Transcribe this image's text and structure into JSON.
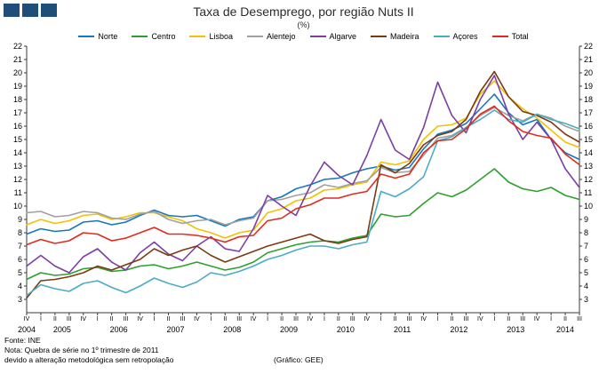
{
  "logo": {
    "color": "#1F4E79",
    "squares": 3
  },
  "header": {
    "title": "Taxa de Desemprego, por região Nuts II",
    "subtitle": "(%)"
  },
  "footer": {
    "source": "Fonte: INE",
    "note_line1": "Nota: Quebra de série no 1º trimestre de 2011",
    "note_line2": "devido a alteração metodológica sem retropolação",
    "credit": "(Gráfico: GEE)"
  },
  "chart_data": {
    "type": "line",
    "title": "Taxa de Desemprego, por região Nuts II",
    "subtitle": "(%)",
    "grid": false,
    "legend_position": "top",
    "ylim": [
      2,
      22
    ],
    "y_ticks": [
      22,
      21,
      20,
      19,
      18,
      17,
      16,
      15,
      14,
      13,
      12,
      11,
      10,
      9,
      8,
      7,
      6,
      5,
      4,
      3
    ],
    "x_quarter_labels": [
      "IV",
      "I",
      "II",
      "III",
      "IV",
      "I",
      "II",
      "III",
      "IV",
      "I",
      "II",
      "III",
      "IV",
      "I",
      "II",
      "III",
      "IV",
      "I",
      "II",
      "III",
      "IV",
      "I",
      "II",
      "III",
      "IV",
      "I",
      "II",
      "III",
      "IV",
      "I",
      "II",
      "III",
      "IV",
      "I",
      "II",
      "III",
      "IV",
      "I",
      "II",
      "III"
    ],
    "years": [
      {
        "label": "2004",
        "quarters": 1
      },
      {
        "label": "2005",
        "quarters": 4
      },
      {
        "label": "2006",
        "quarters": 4
      },
      {
        "label": "2007",
        "quarters": 4
      },
      {
        "label": "2008",
        "quarters": 4
      },
      {
        "label": "2009",
        "quarters": 4
      },
      {
        "label": "2010",
        "quarters": 4
      },
      {
        "label": "2011",
        "quarters": 4
      },
      {
        "label": "2012",
        "quarters": 4
      },
      {
        "label": "2013",
        "quarters": 4
      },
      {
        "label": "2014",
        "quarters": 3
      }
    ],
    "series": [
      {
        "name": "Norte",
        "color": "#1777BC",
        "values": [
          7.9,
          8.3,
          8.1,
          8.2,
          8.8,
          8.9,
          8.6,
          8.8,
          9.3,
          9.7,
          9.3,
          9.2,
          9.3,
          8.9,
          8.5,
          9.0,
          9.2,
          10.4,
          10.7,
          11.3,
          11.6,
          12.0,
          12.1,
          12.5,
          12.8,
          13.0,
          12.7,
          12.9,
          14.3,
          15.4,
          15.7,
          16.2,
          17.3,
          18.4,
          17.0,
          16.1,
          16.5,
          15.0,
          14.0,
          13.5
        ]
      },
      {
        "name": "Centro",
        "color": "#2CA02C",
        "values": [
          4.5,
          5.0,
          4.8,
          4.9,
          5.3,
          5.4,
          5.1,
          5.2,
          5.5,
          5.6,
          5.3,
          5.5,
          5.8,
          5.5,
          5.2,
          5.4,
          5.8,
          6.5,
          6.8,
          7.1,
          7.3,
          7.4,
          7.3,
          7.6,
          7.8,
          9.4,
          9.2,
          9.3,
          10.2,
          11.0,
          10.7,
          11.2,
          12.0,
          12.8,
          11.8,
          11.3,
          11.1,
          11.4,
          10.8,
          10.5
        ]
      },
      {
        "name": "Lisboa",
        "color": "#F2C200",
        "values": [
          8.6,
          9.0,
          8.7,
          8.9,
          9.3,
          9.4,
          9.0,
          9.2,
          9.5,
          9.5,
          9.2,
          8.9,
          8.3,
          8.0,
          7.6,
          8.0,
          8.2,
          9.5,
          9.8,
          10.4,
          10.6,
          11.2,
          11.3,
          11.6,
          11.8,
          13.3,
          13.1,
          13.4,
          15.0,
          16.0,
          16.1,
          16.6,
          18.4,
          19.4,
          18.2,
          17.3,
          16.6,
          15.7,
          14.8,
          14.4
        ]
      },
      {
        "name": "Alentejo",
        "color": "#A0A0A0",
        "values": [
          9.5,
          9.6,
          9.2,
          9.3,
          9.6,
          9.5,
          9.1,
          9.0,
          9.4,
          9.6,
          9.0,
          8.7,
          8.9,
          9.0,
          8.6,
          8.9,
          9.1,
          10.4,
          10.5,
          10.8,
          11.0,
          11.6,
          11.4,
          11.7,
          11.9,
          12.9,
          12.5,
          12.6,
          13.8,
          15.1,
          15.3,
          15.9,
          16.8,
          17.4,
          16.8,
          16.4,
          16.9,
          16.6,
          16.0,
          15.6
        ]
      },
      {
        "name": "Algarve",
        "color": "#7B3FA3",
        "values": [
          5.5,
          6.3,
          5.5,
          5.0,
          6.2,
          6.8,
          5.8,
          5.2,
          6.5,
          7.3,
          6.4,
          5.9,
          7.0,
          7.7,
          6.8,
          6.6,
          8.3,
          10.8,
          10.0,
          9.3,
          11.5,
          13.3,
          12.3,
          11.6,
          13.8,
          16.5,
          14.2,
          13.5,
          15.9,
          19.3,
          16.8,
          15.5,
          18.0,
          19.8,
          16.9,
          15.0,
          16.3,
          15.0,
          12.8,
          11.4
        ]
      },
      {
        "name": "Madeira",
        "color": "#7A3B12",
        "values": [
          3.1,
          4.4,
          4.5,
          4.7,
          5.0,
          5.5,
          5.2,
          5.6,
          6.0,
          6.8,
          6.3,
          6.7,
          7.0,
          6.3,
          5.8,
          6.2,
          6.6,
          7.0,
          7.3,
          7.6,
          7.9,
          7.4,
          7.2,
          7.5,
          7.7,
          13.1,
          12.5,
          13.2,
          14.6,
          15.3,
          15.6,
          16.5,
          18.6,
          20.1,
          18.2,
          17.1,
          16.8,
          16.3,
          15.4,
          14.8
        ]
      },
      {
        "name": "Açores",
        "color": "#4BACC6",
        "values": [
          3.3,
          4.1,
          3.8,
          3.6,
          4.2,
          4.4,
          3.9,
          3.5,
          4.0,
          4.6,
          4.2,
          3.9,
          4.3,
          5.0,
          4.8,
          5.1,
          5.5,
          6.0,
          6.3,
          6.7,
          7.0,
          7.0,
          6.8,
          7.1,
          7.3,
          11.1,
          10.7,
          11.3,
          12.2,
          14.9,
          15.2,
          15.9,
          16.5,
          17.2,
          16.5,
          16.3,
          16.9,
          16.5,
          16.2,
          15.8
        ]
      },
      {
        "name": "Total",
        "color": "#E02B20",
        "values": [
          7.1,
          7.5,
          7.2,
          7.4,
          8.0,
          7.9,
          7.4,
          7.6,
          8.0,
          8.4,
          7.9,
          7.9,
          7.8,
          7.6,
          7.3,
          7.7,
          7.8,
          8.9,
          9.1,
          9.8,
          10.1,
          10.6,
          10.6,
          10.9,
          11.1,
          12.4,
          12.1,
          12.4,
          14.0,
          14.9,
          15.0,
          15.8,
          16.9,
          17.5,
          16.4,
          15.6,
          15.3,
          15.1,
          13.9,
          13.1
        ]
      }
    ]
  }
}
